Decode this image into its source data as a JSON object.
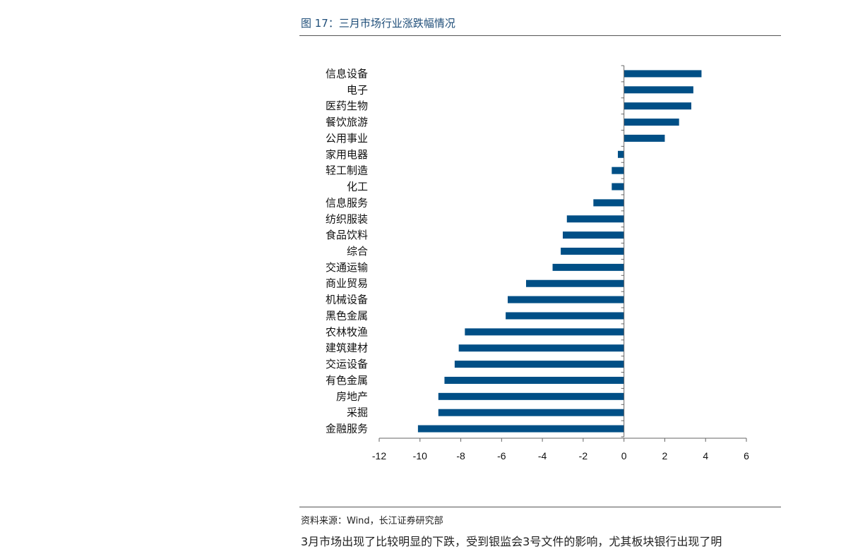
{
  "figure": {
    "title": "图 17：三月市场行业涨跌幅情况",
    "source": "资料来源：Wind，长江证券研究部",
    "body_text": "3月市场出现了比较明显的下跌，受到银监会3号文件的影响，尤其板块银行出现了明"
  },
  "colors": {
    "bar": "#004f86",
    "axis": "#666666"
  },
  "chart_data": {
    "type": "bar",
    "orientation": "horizontal",
    "categories": [
      "信息设备",
      "电子",
      "医药生物",
      "餐饮旅游",
      "公用事业",
      "家用电器",
      "轻工制造",
      "化工",
      "信息服务",
      "纺织服装",
      "食品饮料",
      "综合",
      "交通运输",
      "商业贸易",
      "机械设备",
      "黑色金属",
      "农林牧渔",
      "建筑建材",
      "交运设备",
      "有色金属",
      "房地产",
      "采掘",
      "金融服务"
    ],
    "values": [
      3.8,
      3.4,
      3.3,
      2.7,
      2.0,
      -0.3,
      -0.6,
      -0.6,
      -1.5,
      -2.8,
      -3.0,
      -3.1,
      -3.5,
      -4.8,
      -5.7,
      -5.8,
      -7.8,
      -8.1,
      -8.3,
      -8.8,
      -9.1,
      -9.1,
      -10.1
    ],
    "xlim": [
      -12,
      6
    ],
    "xticks": [
      "-12",
      "-10",
      "-8",
      "-6",
      "-4",
      "-2",
      "0",
      "2",
      "4",
      "6"
    ],
    "grid": false,
    "legend": "none"
  }
}
